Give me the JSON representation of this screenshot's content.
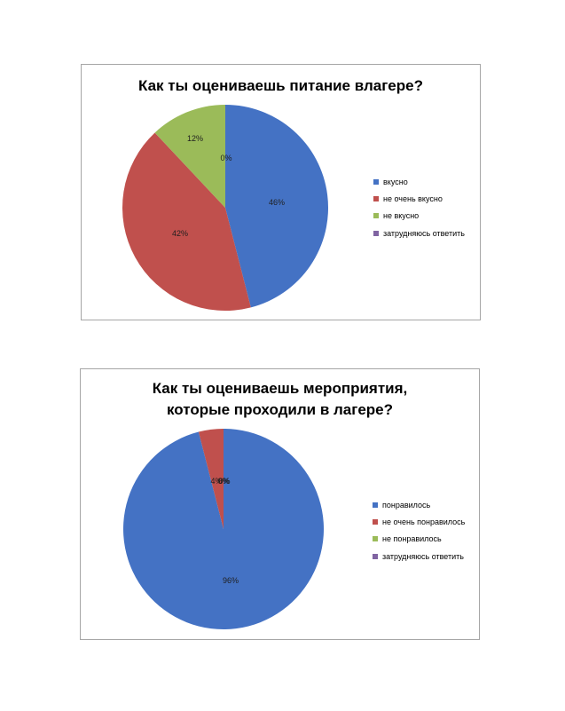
{
  "chart_data": [
    {
      "type": "pie",
      "title": "Как ты оцениваешь питание влагере?",
      "categories": [
        "вкусно",
        "не очень вкусно",
        "не вкусно",
        "затрудняюсь ответить"
      ],
      "values": [
        46,
        42,
        12,
        0
      ],
      "data_labels": [
        "46%",
        "42%",
        "12%",
        "0%"
      ],
      "colors": [
        "#4472c4",
        "#c0504d",
        "#9bbb59",
        "#8064a2"
      ],
      "legend": "right"
    },
    {
      "type": "pie",
      "title_lines": [
        "Как ты оцениваешь мероприятия,",
        "которые проходили в лагере?"
      ],
      "categories": [
        "понравилось",
        "не очень понравилось",
        "не понравилось",
        "затрудняюсь ответить"
      ],
      "values": [
        96,
        4,
        0,
        0
      ],
      "data_labels": [
        "96%",
        "4%",
        "0%",
        "0%"
      ],
      "colors": [
        "#4472c4",
        "#c0504d",
        "#9bbb59",
        "#8064a2"
      ],
      "legend": "right"
    }
  ]
}
